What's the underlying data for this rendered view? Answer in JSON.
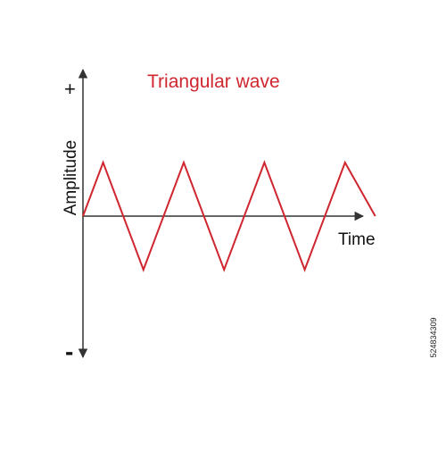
{
  "diagram": {
    "title": "Triangular wave",
    "x_axis_label": "Time",
    "y_axis_label": "Amplitude",
    "y_positive_marker": "+",
    "y_negative_marker": "-",
    "wave_color": "#d0262f",
    "axis_color": "#333333"
  },
  "chart_data": {
    "type": "line",
    "title": "Triangular wave",
    "xlabel": "Time",
    "ylabel": "Amplitude",
    "grid": false,
    "series": [
      {
        "x": [
          0,
          1,
          3,
          5,
          7,
          9,
          11,
          13,
          14.5
        ],
        "values": [
          0,
          1,
          -1,
          1,
          -1,
          1,
          -1,
          1,
          0
        ]
      }
    ],
    "ylim": [
      -2.5,
      2.5
    ]
  },
  "watermark": {
    "image_id": "524834309"
  }
}
